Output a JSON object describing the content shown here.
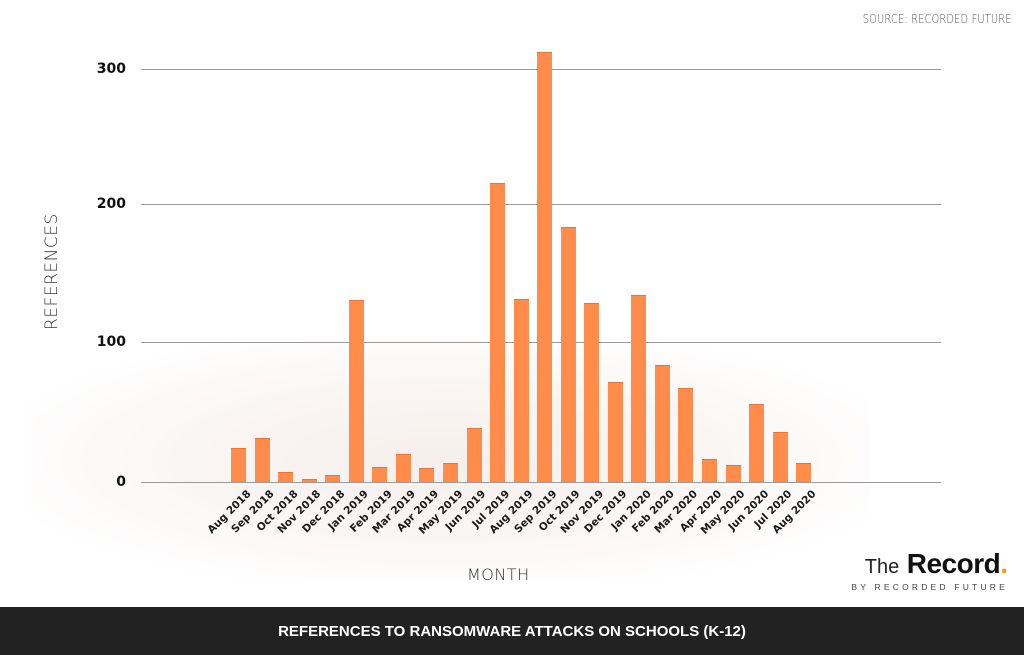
{
  "source": "SOURCE: RECORDED FUTURE",
  "footer": {
    "title": "REFERENCES TO RANSOMWARE ATTACKS ON SCHOOLS (K-12)"
  },
  "brand": {
    "the": "The",
    "record": "Record",
    "dot": ".",
    "byline": "BY RECORDED FUTURE",
    "accent": "#f29a2e"
  },
  "axes": {
    "ylabel": "REFERENCES",
    "xlabel": "MONTH",
    "yticks": [
      "300",
      "200",
      "100",
      "0"
    ]
  },
  "colors": {
    "bar": "#ff8c4a",
    "footer_bg": "#222222",
    "grid": "#9a9a9a"
  },
  "chart_data": {
    "type": "bar",
    "title": "REFERENCES TO RANSOMWARE ATTACKS ON SCHOOLS (K-12)",
    "source": "SOURCE: RECORDED FUTURE",
    "xlabel": "MONTH",
    "ylabel": "REFERENCES",
    "ylim": [
      0,
      320
    ],
    "yticks": [
      0,
      100,
      200,
      300
    ],
    "grid": true,
    "legend": null,
    "categories": [
      "Aug 2018",
      "Sep 2018",
      "Oct 2018",
      "Nov 2018",
      "Dec 2018",
      "Jan 2019",
      "Feb 2019",
      "Mar 2019",
      "Apr 2019",
      "May 2019",
      "Jun 2019",
      "Jul 2019",
      "Aug 2019",
      "Sep 2019",
      "Oct 2019",
      "Nov 2019",
      "Dec 2019",
      "Jan 2020",
      "Feb 2020",
      "Mar 2020",
      "Apr 2020",
      "May 2020",
      "Jun 2020",
      "Jul 2020",
      "Aug 2020"
    ],
    "values": [
      25,
      32,
      7,
      2,
      5,
      132,
      11,
      20,
      10,
      14,
      39,
      217,
      133,
      312,
      185,
      130,
      73,
      136,
      85,
      68,
      17,
      12,
      57,
      36,
      14
    ]
  }
}
